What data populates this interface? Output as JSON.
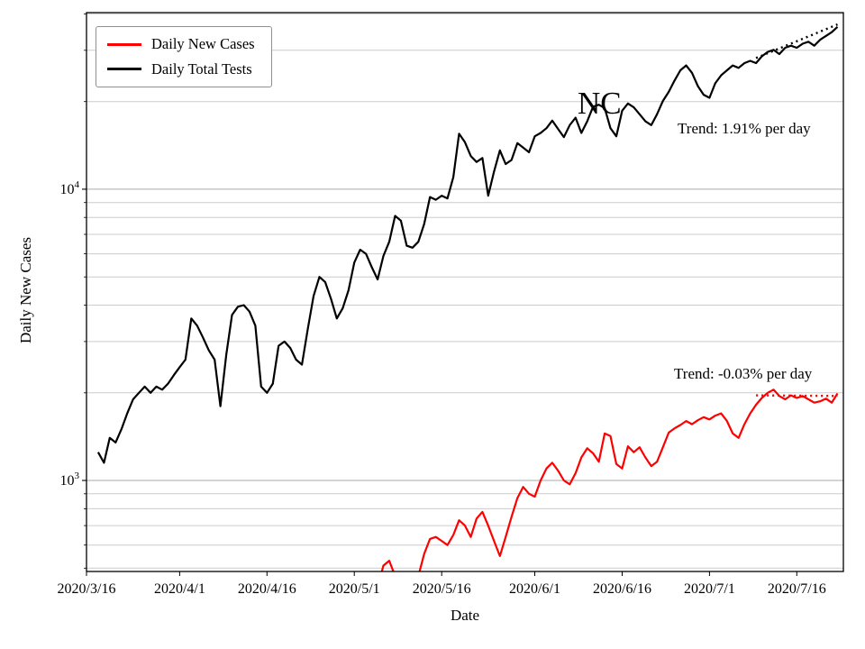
{
  "chart_data": {
    "type": "line",
    "state_label": "NC",
    "xlabel": "Date",
    "ylabel": "Daily New Cases",
    "x_axis": {
      "start": "2020/3/16",
      "end": "2020/7/24",
      "tick_labels": [
        "2020/3/16",
        "2020/4/1",
        "2020/4/16",
        "2020/5/1",
        "2020/5/16",
        "2020/6/1",
        "2020/6/16",
        "2020/7/1",
        "2020/7/16"
      ]
    },
    "y_axis": {
      "scale": "log",
      "min": 487,
      "max": 40400,
      "major_ticks": [
        {
          "value": 1000,
          "mantissa": "10",
          "exponent": "3"
        },
        {
          "value": 10000,
          "mantissa": "10",
          "exponent": "4"
        }
      ],
      "minor_tick_values": [
        500,
        600,
        700,
        800,
        900,
        2000,
        3000,
        4000,
        5000,
        6000,
        7000,
        8000,
        9000,
        20000,
        30000,
        40000
      ]
    },
    "grid": true,
    "style": {
      "grid_minor_color": "#cccccc",
      "grid_major_color": "#aaaaaa",
      "axis_color": "#000000",
      "cases_color": "#ff0000",
      "tests_color": "#000000"
    },
    "legend": {
      "position": "upper-left",
      "entries": [
        {
          "label": "Daily New Cases",
          "color": "#ff0000"
        },
        {
          "label": "Daily Total Tests",
          "color": "#000000"
        }
      ]
    },
    "series": [
      {
        "name": "Daily Total Tests",
        "color": "#000000",
        "start_date": "2020/3/18",
        "values": [
          1250,
          1150,
          1400,
          1350,
          1500,
          1700,
          1900,
          2000,
          2100,
          2000,
          2100,
          2050,
          2150,
          2300,
          2450,
          2600,
          3600,
          3400,
          3100,
          2800,
          2600,
          1800,
          2700,
          3700,
          3950,
          4000,
          3800,
          3400,
          2100,
          2000,
          2150,
          2900,
          3000,
          2850,
          2600,
          2500,
          3300,
          4300,
          5000,
          4800,
          4200,
          3600,
          3900,
          4500,
          5600,
          6200,
          6000,
          5400,
          4900,
          5900,
          6600,
          8100,
          7800,
          6400,
          6300,
          6600,
          7600,
          9400,
          9200,
          9500,
          9300,
          11000,
          15500,
          14500,
          13000,
          12400,
          12800,
          9500,
          11500,
          13600,
          12200,
          12600,
          14400,
          13900,
          13400,
          15200,
          15600,
          16200,
          17200,
          16100,
          15100,
          16600,
          17600,
          15600,
          17100,
          19200,
          19500,
          19000,
          16200,
          15200,
          18600,
          19700,
          19100,
          18100,
          17100,
          16600,
          18100,
          20100,
          21600,
          23600,
          25600,
          26600,
          25100,
          22600,
          21100,
          20600,
          23100,
          24600,
          25600,
          26600,
          26100,
          27100,
          27600,
          27100,
          28600,
          29600,
          30100,
          29100,
          30600,
          31100,
          30600,
          31600,
          32100,
          31100,
          32600,
          33600,
          34600,
          36100
        ]
      },
      {
        "name": "Daily New Cases",
        "color": "#ff0000",
        "start_date": "2020/5/5",
        "values": [
          430,
          510,
          530,
          470,
          420,
          400,
          430,
          470,
          560,
          630,
          640,
          620,
          600,
          650,
          730,
          700,
          640,
          740,
          780,
          700,
          620,
          550,
          640,
          750,
          870,
          950,
          900,
          880,
          1000,
          1100,
          1150,
          1080,
          1000,
          970,
          1060,
          1200,
          1290,
          1240,
          1160,
          1450,
          1420,
          1140,
          1100,
          1310,
          1250,
          1300,
          1200,
          1120,
          1160,
          1300,
          1460,
          1510,
          1550,
          1600,
          1560,
          1610,
          1650,
          1620,
          1670,
          1700,
          1600,
          1450,
          1400,
          1560,
          1700,
          1820,
          1920,
          2000,
          2050,
          1950,
          1900,
          1960,
          1920,
          1950,
          1900,
          1850,
          1870,
          1910,
          1850,
          1990
        ]
      }
    ],
    "trend_lines": [
      {
        "series": "Daily Total Tests",
        "color": "#000000",
        "style": "dotted",
        "start_date": "2020/7/9",
        "start_value": 28200,
        "end_date": "2020/7/23",
        "end_value": 36800,
        "label": "Trend: 1.91% per day"
      },
      {
        "series": "Daily New Cases",
        "color": "#ff0000",
        "style": "dotted",
        "start_date": "2020/7/9",
        "start_value": 1960,
        "end_date": "2020/7/23",
        "end_value": 1950,
        "label": "Trend: -0.03% per day"
      }
    ]
  }
}
